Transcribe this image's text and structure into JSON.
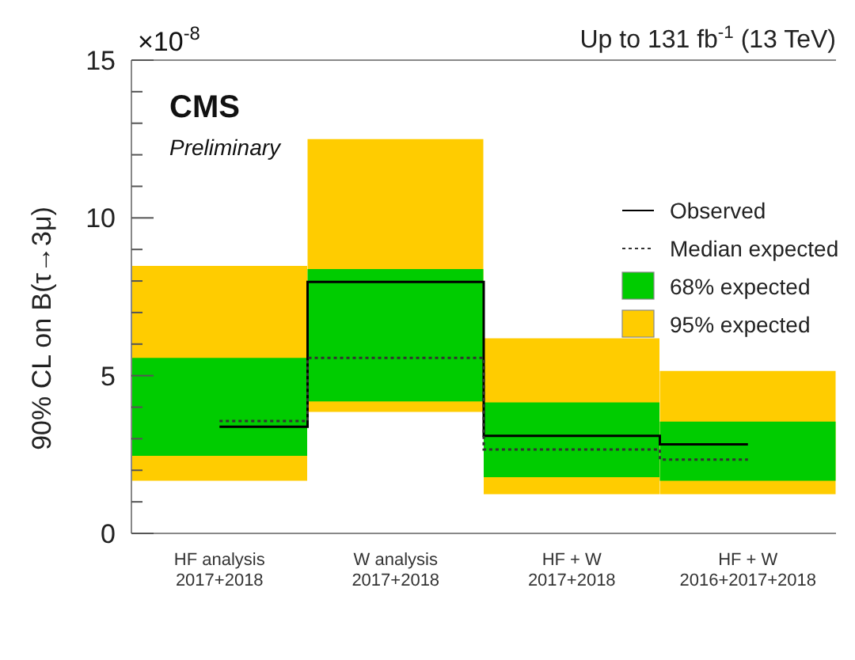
{
  "chart_data": {
    "type": "bar",
    "title": "Up to 131 fb$^{-1}$ (13 TeV)",
    "ylabel": "90% CL on B(τ→3μ)",
    "annotations": [
      "×10$^{-8}$",
      "CMS",
      "Preliminary"
    ],
    "categories": [
      "HF analysis\n2017+2018",
      "W analysis\n2017+2018",
      "HF + W\n2017+2018",
      "HF + W\n2016+2017+2018"
    ],
    "series": [
      {
        "name": "Observed",
        "type": "step",
        "color": "#000000",
        "line_style": "solid",
        "values": [
          3.38,
          7.97,
          3.09,
          2.82
        ]
      },
      {
        "name": "Median expected",
        "type": "step",
        "color": "#333333",
        "line_style": "dotted",
        "values": [
          3.56,
          5.56,
          2.66,
          2.34
        ]
      },
      {
        "name": "68% expected",
        "color": "#00cc00",
        "base": [
          2.46,
          4.18,
          1.78,
          1.67
        ],
        "values": [
          3.1,
          4.2,
          2.37,
          1.87
        ]
      },
      {
        "name": "95% expected",
        "color": "#ffcc00",
        "base": [
          1.67,
          3.85,
          1.24,
          1.24
        ],
        "values": [
          6.81,
          8.65,
          4.94,
          3.91
        ]
      }
    ],
    "ylim": [
      0,
      15
    ],
    "yticks": [
      0,
      {
        "value": 1,
        "label": null
      },
      {
        "value": 2,
        "label": null
      },
      {
        "value": 3,
        "label": null
      },
      {
        "value": 4,
        "label": null
      },
      5,
      {
        "value": 6,
        "label": null
      },
      {
        "value": 7,
        "label": null
      },
      {
        "value": 8,
        "label": null
      },
      {
        "value": 9,
        "label": null
      },
      10,
      {
        "value": 11,
        "label": null
      },
      {
        "value": 12,
        "label": null
      },
      {
        "value": 13,
        "label": null
      },
      {
        "value": 14,
        "label": null
      },
      15
    ],
    "grid": false,
    "legend": "top right"
  }
}
